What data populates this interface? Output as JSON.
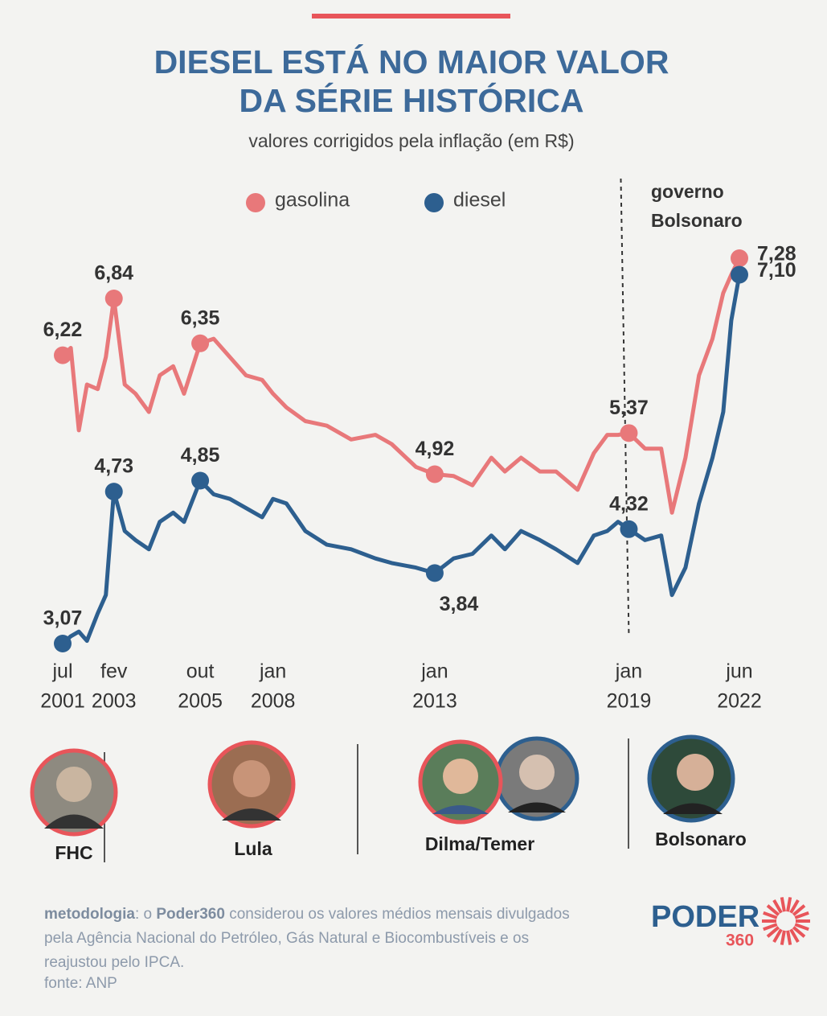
{
  "chart_data": {
    "type": "line",
    "title": [
      "DIESEL ESTÁ NO MAIOR VALOR",
      "DA SÉRIE HISTÓRICA"
    ],
    "subtitle": "valores corrigidos pela inflação (em R$)",
    "x": [
      "2001-07",
      "2001-10",
      "2002-01",
      "2002-04",
      "2002-08",
      "2002-11",
      "2003-02",
      "2003-06",
      "2003-10",
      "2004-03",
      "2004-07",
      "2004-12",
      "2005-04",
      "2005-10",
      "2006-03",
      "2006-09",
      "2007-03",
      "2007-09",
      "2008-01",
      "2008-06",
      "2009-01",
      "2009-09",
      "2010-06",
      "2011-03",
      "2011-09",
      "2012-06",
      "2013-01",
      "2013-08",
      "2014-03",
      "2014-10",
      "2015-03",
      "2015-09",
      "2016-04",
      "2016-10",
      "2017-06",
      "2017-12",
      "2018-05",
      "2018-09",
      "2019-01",
      "2019-07",
      "2020-01",
      "2020-05",
      "2020-10",
      "2021-03",
      "2021-08",
      "2021-12",
      "2022-03",
      "2022-06"
    ],
    "series": [
      {
        "name": "gasolina",
        "color": "#e8787a",
        "values": [
          6.22,
          6.3,
          5.4,
          5.9,
          5.85,
          6.2,
          6.84,
          5.9,
          5.8,
          5.6,
          6.0,
          6.1,
          5.8,
          6.35,
          6.4,
          6.2,
          6.0,
          5.95,
          5.8,
          5.65,
          5.5,
          5.45,
          5.3,
          5.35,
          5.25,
          5.0,
          4.92,
          4.9,
          4.8,
          5.1,
          4.95,
          5.1,
          4.95,
          4.95,
          4.75,
          5.15,
          5.35,
          5.35,
          5.37,
          5.2,
          5.2,
          4.5,
          5.1,
          6.0,
          6.4,
          6.9,
          7.1,
          7.28
        ],
        "value_labels": [
          "6,22",
          null,
          null,
          null,
          null,
          null,
          "6,84",
          null,
          null,
          null,
          null,
          null,
          null,
          "6,35",
          null,
          null,
          null,
          null,
          null,
          null,
          null,
          null,
          null,
          null,
          null,
          null,
          "4,92",
          null,
          null,
          null,
          null,
          null,
          null,
          null,
          null,
          null,
          null,
          null,
          "5,37",
          null,
          null,
          null,
          null,
          null,
          null,
          null,
          null,
          "7,28"
        ]
      },
      {
        "name": "diesel",
        "color": "#2d5f8f",
        "values": [
          3.07,
          3.15,
          3.2,
          3.1,
          3.4,
          3.6,
          4.73,
          4.3,
          4.2,
          4.1,
          4.4,
          4.5,
          4.4,
          4.85,
          4.7,
          4.65,
          4.55,
          4.45,
          4.65,
          4.6,
          4.3,
          4.15,
          4.1,
          4.0,
          3.95,
          3.9,
          3.84,
          4.0,
          4.05,
          4.25,
          4.1,
          4.3,
          4.2,
          4.1,
          3.95,
          4.25,
          4.3,
          4.4,
          4.32,
          4.2,
          4.25,
          3.6,
          3.9,
          4.6,
          5.1,
          5.6,
          6.6,
          7.1
        ],
        "value_labels": [
          "3,07",
          null,
          null,
          null,
          null,
          null,
          "4,73",
          null,
          null,
          null,
          null,
          null,
          null,
          "4,85",
          null,
          null,
          null,
          null,
          null,
          null,
          null,
          null,
          null,
          null,
          null,
          null,
          "3,84",
          null,
          null,
          null,
          null,
          null,
          null,
          null,
          null,
          null,
          null,
          null,
          "4,32",
          null,
          null,
          null,
          null,
          null,
          null,
          null,
          null,
          "7,10"
        ]
      }
    ],
    "xticks": [
      {
        "value": "2001-07",
        "label": [
          "jul",
          "2001"
        ]
      },
      {
        "value": "2003-02",
        "label": [
          "fev",
          "2003"
        ]
      },
      {
        "value": "2005-10",
        "label": [
          "out",
          "2005"
        ]
      },
      {
        "value": "2008-01",
        "label": [
          "jan",
          "2008"
        ]
      },
      {
        "value": "2013-01",
        "label": [
          "jan",
          "2013"
        ]
      },
      {
        "value": "2019-01",
        "label": [
          "jan",
          "2019"
        ]
      },
      {
        "value": "2022-06",
        "label": [
          "jun",
          "2022"
        ]
      }
    ],
    "annotation": {
      "x": "2019-01",
      "text": [
        "governo",
        "Bolsonaro"
      ]
    }
  },
  "presidents": [
    "FHC",
    "Lula",
    "Dilma/Temer",
    "Bolsonaro"
  ],
  "footer": {
    "methodology_label": "metodologia",
    "methodology_intro": ": o",
    "brand": "Poder360",
    "methodology_text": "considerou os valores médios mensais divulgados pela Agência Nacional do Petróleo, Gás Natural e Biocombustíveis e os reajustou pelo IPCA.",
    "source": "fonte: ANP"
  },
  "logo": {
    "word": "PODER",
    "number": "360"
  }
}
